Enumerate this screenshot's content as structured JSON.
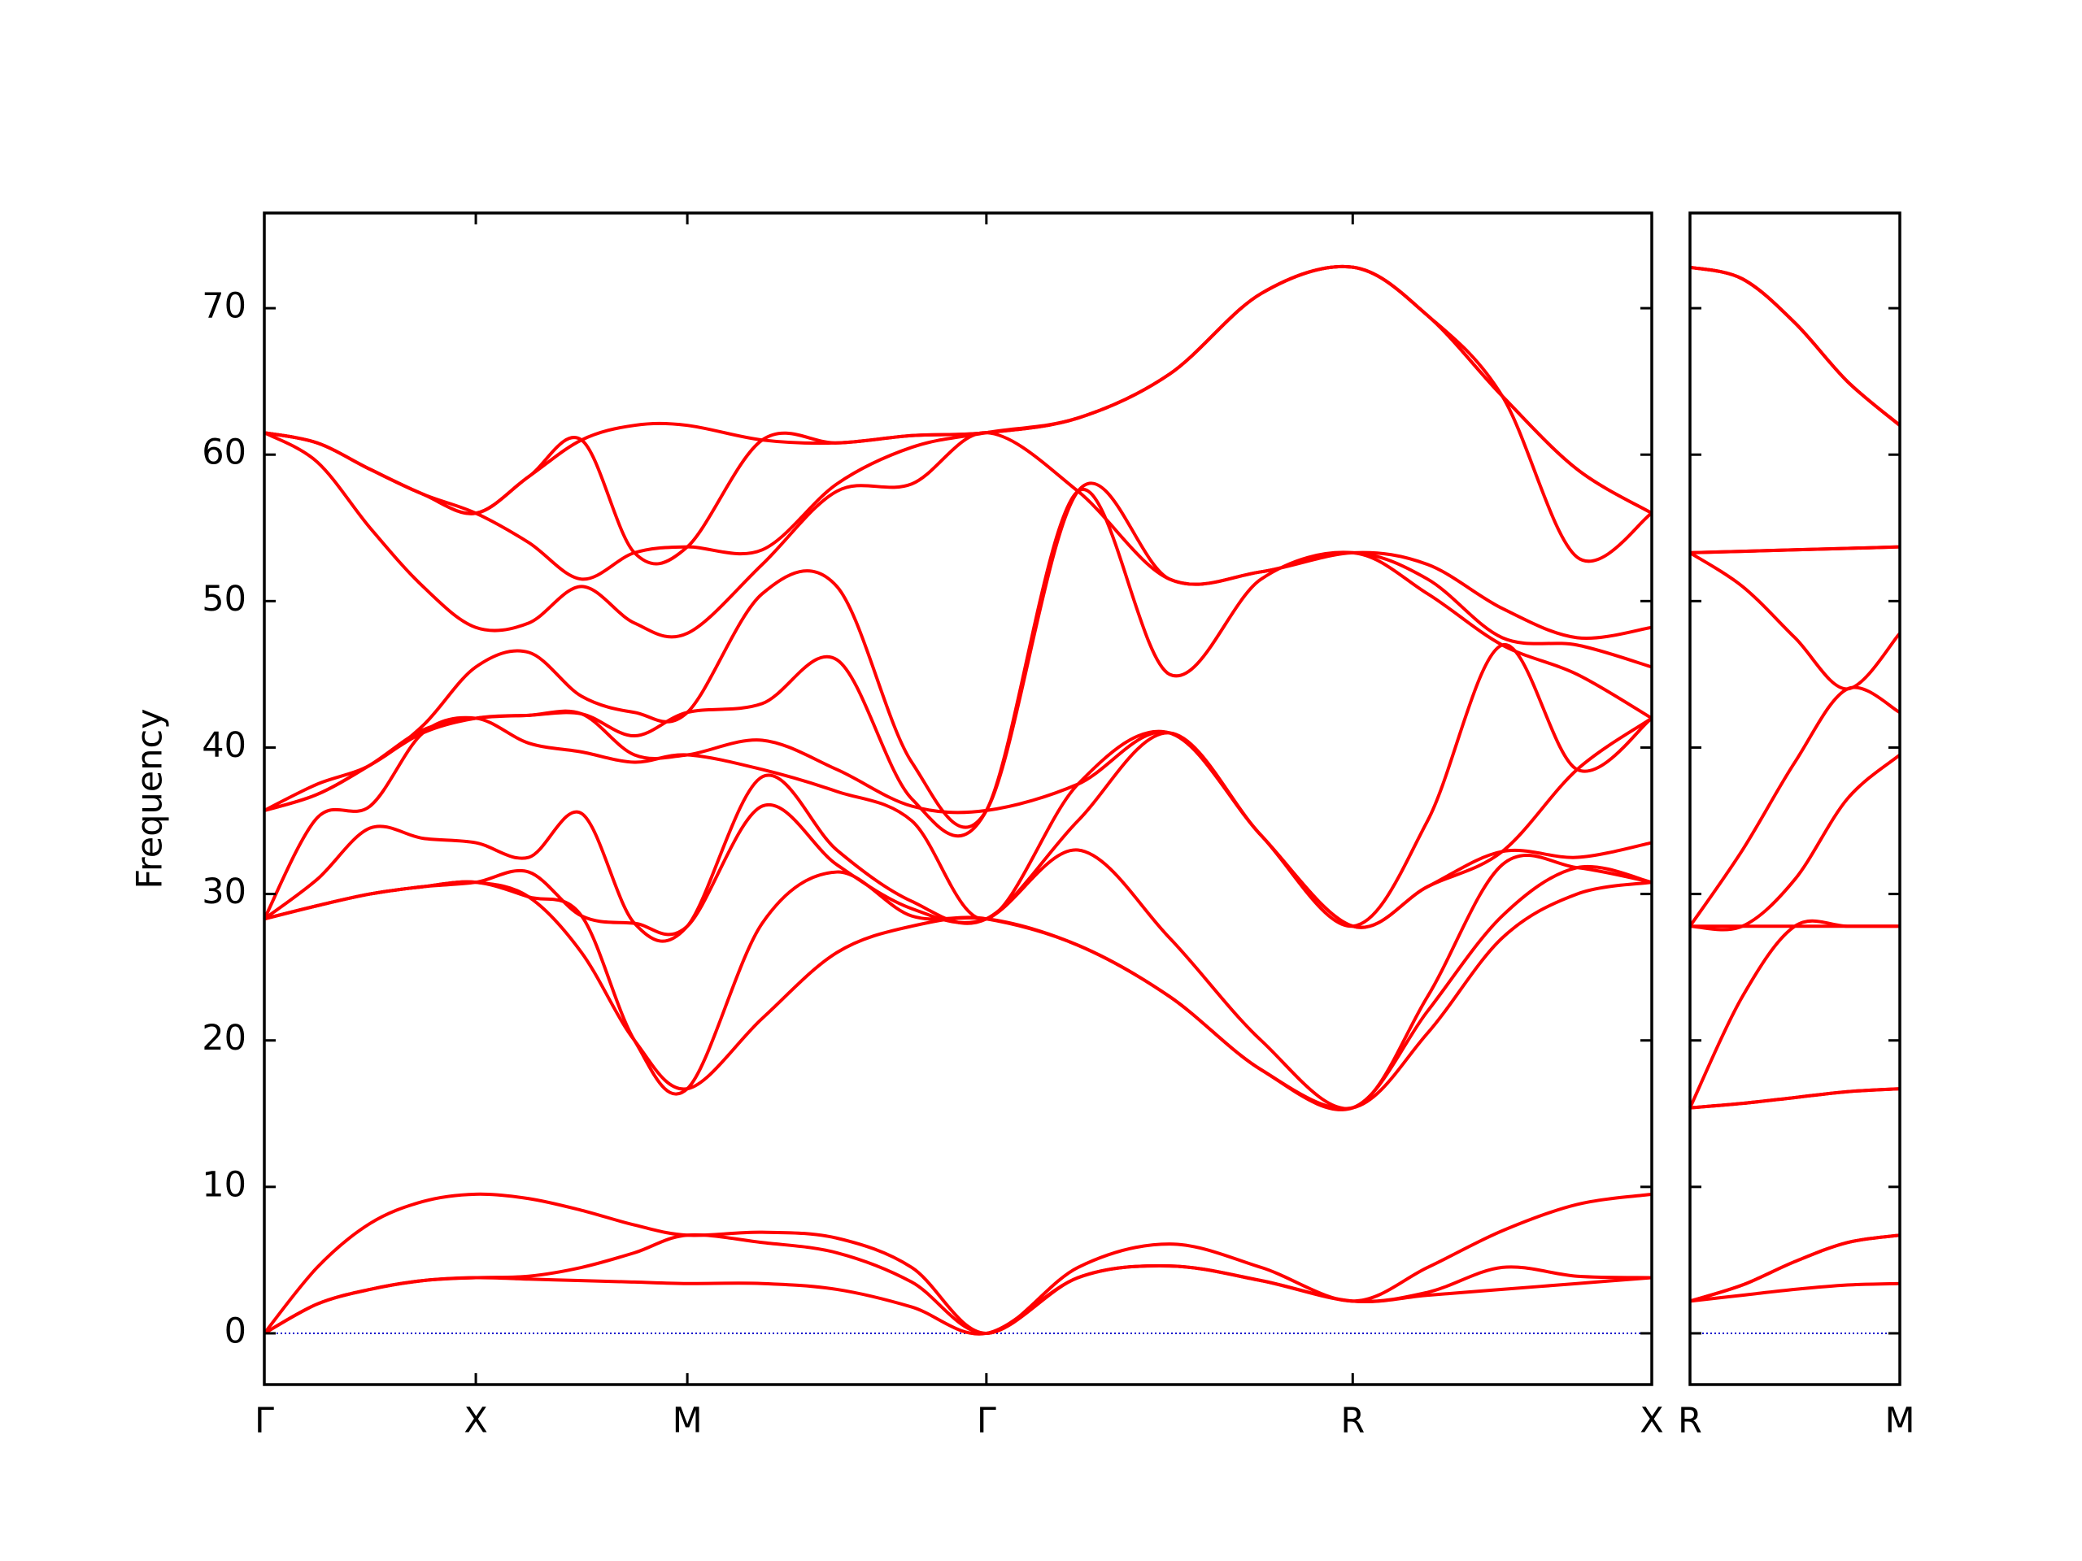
{
  "chart_data": [
    {
      "type": "line",
      "ylabel": "Frequency",
      "color": "#ff0000",
      "x": [
        0,
        0.25,
        0.5,
        0.75,
        1,
        1.25,
        1.5,
        1.75,
        2,
        2.354,
        2.707,
        3.061,
        3.414,
        3.847,
        4.28,
        4.713,
        5.146,
        5.5,
        5.853,
        6.207,
        6.56
      ],
      "xlim": [
        0,
        6.56
      ],
      "xticks": [
        {
          "value": 0,
          "label": "Γ"
        },
        {
          "value": 1,
          "label": "X"
        },
        {
          "value": 2,
          "label": "M"
        },
        {
          "value": 3.414,
          "label": "Γ"
        },
        {
          "value": 5.146,
          "label": "R"
        },
        {
          "value": 6.56,
          "label": "X"
        }
      ],
      "ylim": [
        -3.5,
        76.5
      ],
      "yticks": [
        0,
        10,
        20,
        30,
        40,
        50,
        60,
        70
      ],
      "ytick_labels": true,
      "hline": {
        "value": 0,
        "color": "#0000cc"
      },
      "series": [
        {
          "values": [
            0,
            2.0,
            3.0,
            3.6,
            3.8,
            3.7,
            3.6,
            3.5,
            3.4,
            3.4,
            3.0,
            1.8,
            0,
            3.8,
            4.6,
            3.6,
            2.2,
            2.6,
            3.0,
            3.4,
            3.8
          ]
        },
        {
          "values": [
            0,
            2.0,
            3.0,
            3.6,
            3.8,
            3.9,
            4.5,
            5.5,
            6.7,
            6.2,
            5.5,
            3.5,
            0,
            3.8,
            4.6,
            3.6,
            2.2,
            2.8,
            4.5,
            3.9,
            3.8
          ]
        },
        {
          "values": [
            0,
            4.5,
            7.5,
            9.0,
            9.5,
            9.2,
            8.4,
            7.4,
            6.7,
            6.9,
            6.5,
            4.5,
            0,
            4.5,
            6.1,
            4.5,
            2.2,
            4.5,
            7.0,
            8.8,
            9.5
          ]
        },
        {
          "values": [
            28.3,
            29.2,
            30.0,
            30.5,
            30.8,
            29.8,
            26.0,
            20.0,
            16.7,
            21.5,
            26.0,
            27.8,
            28.3,
            26.5,
            23.0,
            18.0,
            15.4,
            20.5,
            27.0,
            30.0,
            30.8
          ]
        },
        {
          "values": [
            28.3,
            29.2,
            30.0,
            30.5,
            30.8,
            29.8,
            28.5,
            20.0,
            16.7,
            28.0,
            31.5,
            28.5,
            28.3,
            26.5,
            23.0,
            18.0,
            15.4,
            22.0,
            28.5,
            31.8,
            30.8
          ]
        },
        {
          "values": [
            28.3,
            29.2,
            30.0,
            30.5,
            30.8,
            31.5,
            28.5,
            28.0,
            27.8,
            36.0,
            32.0,
            29.0,
            28.3,
            33.0,
            27.0,
            20.0,
            15.4,
            23.0,
            32.0,
            31.8,
            30.8
          ]
        },
        {
          "values": [
            28.3,
            31.0,
            34.5,
            33.8,
            33.5,
            32.5,
            35.5,
            28.0,
            27.8,
            38.0,
            33.0,
            29.5,
            28.3,
            35.0,
            41.0,
            34.0,
            27.8,
            30.5,
            32.9,
            32.5,
            33.5
          ]
        },
        {
          "values": [
            28.3,
            35.2,
            36.0,
            41.0,
            42,
            40.3,
            39.7,
            39.0,
            39.5,
            38.5,
            37.0,
            35.0,
            28.3,
            37.5,
            41.0,
            34.0,
            27.8,
            30.5,
            32.9,
            38.5,
            42
          ]
        },
        {
          "values": [
            35.7,
            36.8,
            38.8,
            41.0,
            42,
            42.2,
            42.3,
            39.5,
            39.5,
            40.5,
            38.5,
            36.0,
            35.7,
            37.5,
            41.0,
            34.0,
            27.8,
            35.0,
            47.0,
            38.5,
            42
          ]
        },
        {
          "values": [
            35.7,
            36.8,
            38.8,
            41.2,
            42,
            42.2,
            42.3,
            40.8,
            42.4,
            43.0,
            46.0,
            36.5,
            35.7,
            57.5,
            45.0,
            51.5,
            53.3,
            50.5,
            47.0,
            45.0,
            42
          ]
        },
        {
          "values": [
            35.7,
            37.5,
            38.8,
            41.5,
            45.5,
            46.5,
            43.5,
            42.4,
            42.4,
            50.5,
            51.0,
            39.0,
            35.7,
            57.5,
            51.5,
            52.0,
            53.3,
            51.5,
            47.5,
            47.0,
            45.5
          ]
        },
        {
          "values": [
            61.5,
            59.5,
            55.0,
            51.0,
            48.2,
            48.5,
            51.0,
            48.5,
            47.8,
            52.5,
            57.5,
            58.0,
            61.5,
            57.5,
            51.5,
            52.0,
            53.3,
            52.5,
            49.5,
            47.5,
            48.2
          ]
        },
        {
          "values": [
            61.5,
            60.8,
            59.0,
            57.3,
            56,
            54,
            51.5,
            53.3,
            53.7,
            53.5,
            58.0,
            60.5,
            61.5,
            62.5,
            65.5,
            71.0,
            72.8,
            69.5,
            64.0,
            53.0,
            56
          ]
        },
        {
          "values": [
            61.5,
            60.8,
            59.0,
            57.3,
            56,
            58.5,
            61.0,
            53.3,
            53.7,
            61.0,
            60.8,
            61.3,
            61.5,
            62.5,
            65.5,
            71.0,
            72.8,
            69.5,
            64.0,
            59.0,
            56
          ]
        },
        {
          "values": [
            61.5,
            60.8,
            59.0,
            57.3,
            56,
            58.5,
            61.0,
            62.0,
            62.0,
            61.0,
            60.8,
            61.3,
            61.5,
            62.5,
            65.5,
            71.0,
            72.8,
            69.5,
            64.0,
            59.0,
            56
          ]
        }
      ]
    },
    {
      "type": "line",
      "color": "#ff0000",
      "x": [
        0,
        0.25,
        0.5,
        0.75,
        1
      ],
      "xlim": [
        0,
        1
      ],
      "xticks": [
        {
          "value": 0,
          "label": "R"
        },
        {
          "value": 1,
          "label": "M"
        }
      ],
      "ylim": [
        -3.5,
        76.5
      ],
      "yticks": [
        0,
        10,
        20,
        30,
        40,
        50,
        60,
        70
      ],
      "ytick_labels": false,
      "hline": {
        "value": 0,
        "color": "#0000cc"
      },
      "series": [
        {
          "values": [
            2.2,
            2.6,
            3.0,
            3.3,
            3.4
          ]
        },
        {
          "values": [
            2.2,
            3.3,
            4.9,
            6.2,
            6.7
          ]
        },
        {
          "values": [
            2.2,
            3.3,
            4.9,
            6.2,
            6.7
          ]
        },
        {
          "values": [
            15.4,
            15.7,
            16.1,
            16.5,
            16.7
          ]
        },
        {
          "values": [
            15.4,
            15.7,
            16.1,
            16.5,
            16.7
          ]
        },
        {
          "values": [
            15.4,
            23.0,
            27.8,
            27.8,
            27.8
          ]
        },
        {
          "values": [
            27.8,
            27.8,
            27.8,
            27.8,
            27.8
          ]
        },
        {
          "values": [
            27.8,
            27.8,
            31.0,
            36.5,
            39.5
          ]
        },
        {
          "values": [
            27.8,
            33.0,
            39.0,
            44.0,
            42.4
          ]
        },
        {
          "values": [
            53.3,
            51.0,
            47.5,
            44.0,
            47.8
          ]
        },
        {
          "values": [
            53.3,
            53.4,
            53.5,
            53.6,
            53.7
          ]
        },
        {
          "values": [
            53.3,
            53.4,
            53.5,
            53.6,
            53.7
          ]
        },
        {
          "values": [
            72.8,
            72.0,
            69.0,
            65.0,
            62.0
          ]
        },
        {
          "values": [
            72.8,
            72.0,
            69.0,
            65.0,
            62.0
          ]
        },
        {
          "values": [
            72.8,
            72.0,
            69.0,
            65.0,
            62.0
          ]
        }
      ]
    }
  ]
}
